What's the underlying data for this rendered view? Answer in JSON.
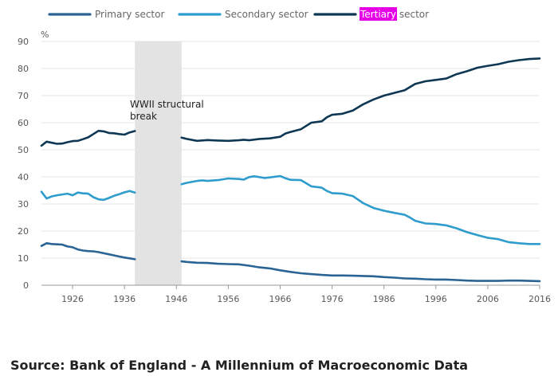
{
  "chart_data": {
    "type": "line",
    "ylabel": "%",
    "ylim": [
      0,
      90
    ],
    "xlim": [
      1920,
      2016
    ],
    "yticks": [
      0,
      10,
      20,
      30,
      40,
      50,
      60,
      70,
      80,
      90
    ],
    "xticks": [
      1926,
      1936,
      1946,
      1956,
      1966,
      1976,
      1986,
      1996,
      2006,
      2016
    ],
    "grid": "horizontal",
    "legend_position": "top",
    "series": [
      {
        "name": "Primary sector",
        "color": "#2a6495",
        "points": [
          [
            1920,
            14.5
          ],
          [
            1921,
            15.5
          ],
          [
            1922,
            15.2
          ],
          [
            1923,
            15.1
          ],
          [
            1924,
            15.0
          ],
          [
            1925,
            14.3
          ],
          [
            1926,
            14.0
          ],
          [
            1927,
            13.2
          ],
          [
            1928,
            12.8
          ],
          [
            1929,
            12.6
          ],
          [
            1930,
            12.5
          ],
          [
            1931,
            12.2
          ],
          [
            1932,
            11.8
          ],
          [
            1933,
            11.4
          ],
          [
            1934,
            11.0
          ],
          [
            1935,
            10.6
          ],
          [
            1936,
            10.2
          ],
          [
            1937,
            9.9
          ],
          [
            1938,
            9.6
          ],
          [
            1947,
            8.8
          ],
          [
            1948,
            8.6
          ],
          [
            1950,
            8.3
          ],
          [
            1952,
            8.2
          ],
          [
            1954,
            7.9
          ],
          [
            1956,
            7.8
          ],
          [
            1958,
            7.7
          ],
          [
            1960,
            7.2
          ],
          [
            1962,
            6.6
          ],
          [
            1964,
            6.2
          ],
          [
            1966,
            5.5
          ],
          [
            1968,
            4.9
          ],
          [
            1970,
            4.4
          ],
          [
            1972,
            4.1
          ],
          [
            1974,
            3.8
          ],
          [
            1976,
            3.6
          ],
          [
            1978,
            3.6
          ],
          [
            1980,
            3.5
          ],
          [
            1982,
            3.4
          ],
          [
            1984,
            3.3
          ],
          [
            1986,
            3.0
          ],
          [
            1988,
            2.8
          ],
          [
            1990,
            2.5
          ],
          [
            1992,
            2.4
          ],
          [
            1994,
            2.2
          ],
          [
            1996,
            2.1
          ],
          [
            1998,
            2.1
          ],
          [
            2000,
            1.9
          ],
          [
            2002,
            1.7
          ],
          [
            2004,
            1.6
          ],
          [
            2006,
            1.6
          ],
          [
            2008,
            1.6
          ],
          [
            2010,
            1.7
          ],
          [
            2012,
            1.7
          ],
          [
            2014,
            1.6
          ],
          [
            2016,
            1.5
          ]
        ]
      },
      {
        "name": "Secondary sector",
        "color": "#2e9ccc",
        "points": [
          [
            1920,
            34.5
          ],
          [
            1921,
            32.0
          ],
          [
            1922,
            32.8
          ],
          [
            1923,
            33.2
          ],
          [
            1924,
            33.5
          ],
          [
            1925,
            33.8
          ],
          [
            1926,
            33.2
          ],
          [
            1927,
            34.2
          ],
          [
            1928,
            33.9
          ],
          [
            1929,
            33.8
          ],
          [
            1930,
            32.5
          ],
          [
            1931,
            31.7
          ],
          [
            1932,
            31.5
          ],
          [
            1933,
            32.2
          ],
          [
            1934,
            33.0
          ],
          [
            1935,
            33.6
          ],
          [
            1936,
            34.3
          ],
          [
            1937,
            34.8
          ],
          [
            1938,
            34.2
          ],
          [
            1947,
            37.3
          ],
          [
            1948,
            37.8
          ],
          [
            1950,
            38.5
          ],
          [
            1951,
            38.7
          ],
          [
            1952,
            38.5
          ],
          [
            1954,
            38.8
          ],
          [
            1956,
            39.4
          ],
          [
            1958,
            39.2
          ],
          [
            1959,
            39.0
          ],
          [
            1960,
            39.9
          ],
          [
            1961,
            40.2
          ],
          [
            1962,
            39.9
          ],
          [
            1963,
            39.6
          ],
          [
            1964,
            39.8
          ],
          [
            1966,
            40.3
          ],
          [
            1967,
            39.5
          ],
          [
            1968,
            38.9
          ],
          [
            1970,
            38.8
          ],
          [
            1972,
            36.5
          ],
          [
            1974,
            36.0
          ],
          [
            1975,
            34.8
          ],
          [
            1976,
            34.0
          ],
          [
            1978,
            33.8
          ],
          [
            1980,
            32.9
          ],
          [
            1982,
            30.3
          ],
          [
            1984,
            28.5
          ],
          [
            1986,
            27.5
          ],
          [
            1988,
            26.7
          ],
          [
            1990,
            26.0
          ],
          [
            1991,
            25.0
          ],
          [
            1992,
            23.8
          ],
          [
            1994,
            22.8
          ],
          [
            1996,
            22.6
          ],
          [
            1998,
            22.1
          ],
          [
            2000,
            21.0
          ],
          [
            2002,
            19.6
          ],
          [
            2004,
            18.5
          ],
          [
            2006,
            17.5
          ],
          [
            2008,
            17.0
          ],
          [
            2010,
            15.9
          ],
          [
            2012,
            15.5
          ],
          [
            2014,
            15.2
          ],
          [
            2016,
            15.2
          ]
        ]
      },
      {
        "name": "Tertiary sector",
        "color": "#0e3753",
        "points": [
          [
            1920,
            51.5
          ],
          [
            1921,
            53.0
          ],
          [
            1922,
            52.6
          ],
          [
            1923,
            52.2
          ],
          [
            1924,
            52.3
          ],
          [
            1925,
            52.8
          ],
          [
            1926,
            53.2
          ],
          [
            1927,
            53.3
          ],
          [
            1928,
            53.9
          ],
          [
            1929,
            54.6
          ],
          [
            1930,
            55.8
          ],
          [
            1931,
            57.0
          ],
          [
            1932,
            56.8
          ],
          [
            1933,
            56.2
          ],
          [
            1934,
            56.1
          ],
          [
            1935,
            55.8
          ],
          [
            1936,
            55.6
          ],
          [
            1937,
            56.4
          ],
          [
            1938,
            56.9
          ],
          [
            1947,
            54.5
          ],
          [
            1948,
            54.0
          ],
          [
            1950,
            53.3
          ],
          [
            1952,
            53.6
          ],
          [
            1954,
            53.4
          ],
          [
            1956,
            53.3
          ],
          [
            1958,
            53.5
          ],
          [
            1959,
            53.7
          ],
          [
            1960,
            53.5
          ],
          [
            1962,
            54.0
          ],
          [
            1964,
            54.2
          ],
          [
            1966,
            54.8
          ],
          [
            1967,
            56.0
          ],
          [
            1968,
            56.6
          ],
          [
            1970,
            57.6
          ],
          [
            1972,
            60.0
          ],
          [
            1974,
            60.5
          ],
          [
            1975,
            62.0
          ],
          [
            1976,
            62.9
          ],
          [
            1978,
            63.3
          ],
          [
            1980,
            64.5
          ],
          [
            1982,
            66.8
          ],
          [
            1984,
            68.6
          ],
          [
            1986,
            70.0
          ],
          [
            1988,
            71.0
          ],
          [
            1990,
            72.0
          ],
          [
            1992,
            74.3
          ],
          [
            1994,
            75.3
          ],
          [
            1996,
            75.8
          ],
          [
            1998,
            76.3
          ],
          [
            2000,
            77.9
          ],
          [
            2002,
            79.0
          ],
          [
            2004,
            80.3
          ],
          [
            2006,
            81.0
          ],
          [
            2008,
            81.6
          ],
          [
            2010,
            82.5
          ],
          [
            2012,
            83.1
          ],
          [
            2014,
            83.5
          ],
          [
            2016,
            83.7
          ]
        ]
      }
    ],
    "shaded_region": {
      "x0": 1938,
      "x1": 1947,
      "color": "#e3e3e3"
    },
    "annotation": {
      "line1": "WWII structural",
      "line2": "break",
      "x": 1938,
      "y": 68
    }
  },
  "legend": {
    "highlight_word": "Tertiary",
    "highlight_rest": " sector",
    "highlight_color": "#e600e6"
  },
  "source": "Source: Bank of England - A Millennium of Macroeconomic Data"
}
